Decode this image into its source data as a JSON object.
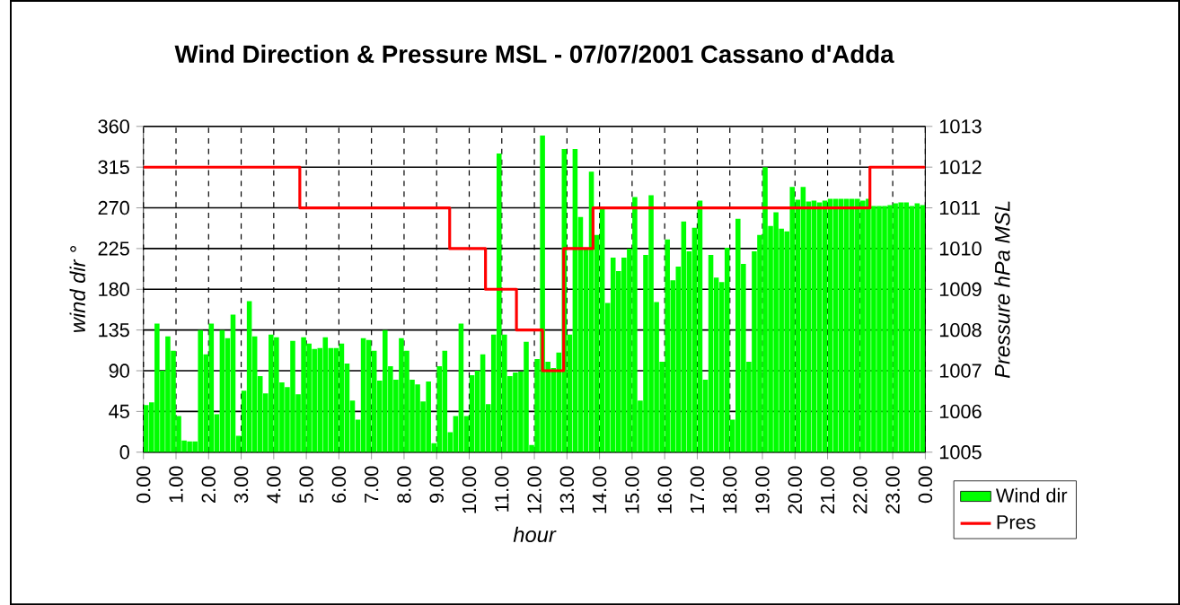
{
  "chart_data": {
    "type": "bar",
    "title": "Wind Direction & Pressure MSL - 07/07/2001 Cassano d'Adda",
    "xlabel": "hour",
    "ylabel": "wind dir °",
    "y2label": "Pressure hPa MSL",
    "series": [
      {
        "name": "Wind dir",
        "color": "#00ff00",
        "x": [
          "2001-07-07T00:05",
          "2001-07-07T00:15",
          "2001-07-07T00:25",
          "2001-07-07T00:35",
          "2001-07-07T00:45",
          "2001-07-07T00:55",
          "2001-07-07T01:05",
          "2001-07-07T01:15",
          "2001-07-07T01:25",
          "2001-07-07T01:35",
          "2001-07-07T01:45",
          "2001-07-07T01:55",
          "2001-07-07T02:05",
          "2001-07-07T02:15",
          "2001-07-07T02:25",
          "2001-07-07T02:35",
          "2001-07-07T02:45",
          "2001-07-07T02:55",
          "2001-07-07T03:05",
          "2001-07-07T03:15",
          "2001-07-07T03:25",
          "2001-07-07T03:35",
          "2001-07-07T03:45",
          "2001-07-07T03:55",
          "2001-07-07T04:05",
          "2001-07-07T04:15",
          "2001-07-07T04:25",
          "2001-07-07T04:35",
          "2001-07-07T04:45",
          "2001-07-07T04:55",
          "2001-07-07T05:05",
          "2001-07-07T05:15",
          "2001-07-07T05:25",
          "2001-07-07T05:35",
          "2001-07-07T05:45",
          "2001-07-07T05:55",
          "2001-07-07T06:05",
          "2001-07-07T06:15",
          "2001-07-07T06:25",
          "2001-07-07T06:35",
          "2001-07-07T06:45",
          "2001-07-07T06:55",
          "2001-07-07T07:05",
          "2001-07-07T07:15",
          "2001-07-07T07:25",
          "2001-07-07T07:35",
          "2001-07-07T07:45",
          "2001-07-07T07:55",
          "2001-07-07T08:05",
          "2001-07-07T08:15",
          "2001-07-07T08:25",
          "2001-07-07T08:35",
          "2001-07-07T08:45",
          "2001-07-07T08:55",
          "2001-07-07T09:05",
          "2001-07-07T09:15",
          "2001-07-07T09:25",
          "2001-07-07T09:35",
          "2001-07-07T09:45",
          "2001-07-07T09:55",
          "2001-07-07T10:05",
          "2001-07-07T10:15",
          "2001-07-07T10:25",
          "2001-07-07T10:35",
          "2001-07-07T10:45",
          "2001-07-07T10:55",
          "2001-07-07T11:05",
          "2001-07-07T11:15",
          "2001-07-07T11:25",
          "2001-07-07T11:35",
          "2001-07-07T11:45",
          "2001-07-07T11:55",
          "2001-07-07T12:05",
          "2001-07-07T12:15",
          "2001-07-07T12:25",
          "2001-07-07T12:35",
          "2001-07-07T12:45",
          "2001-07-07T12:55",
          "2001-07-07T13:05",
          "2001-07-07T13:15",
          "2001-07-07T13:25",
          "2001-07-07T13:35",
          "2001-07-07T13:45",
          "2001-07-07T13:55",
          "2001-07-07T14:05",
          "2001-07-07T14:15",
          "2001-07-07T14:25",
          "2001-07-07T14:35",
          "2001-07-07T14:45",
          "2001-07-07T14:55",
          "2001-07-07T15:05",
          "2001-07-07T15:15",
          "2001-07-07T15:25",
          "2001-07-07T15:35",
          "2001-07-07T15:45",
          "2001-07-07T15:55",
          "2001-07-07T16:05",
          "2001-07-07T16:15",
          "2001-07-07T16:25",
          "2001-07-07T16:35",
          "2001-07-07T16:45",
          "2001-07-07T16:55",
          "2001-07-07T17:05",
          "2001-07-07T17:15",
          "2001-07-07T17:25",
          "2001-07-07T17:35",
          "2001-07-07T17:45",
          "2001-07-07T17:55",
          "2001-07-07T18:05",
          "2001-07-07T18:15",
          "2001-07-07T18:25",
          "2001-07-07T18:35",
          "2001-07-07T18:45",
          "2001-07-07T18:55",
          "2001-07-07T19:05",
          "2001-07-07T19:15",
          "2001-07-07T19:25",
          "2001-07-07T19:35",
          "2001-07-07T19:45",
          "2001-07-07T19:55",
          "2001-07-07T20:05",
          "2001-07-07T20:15",
          "2001-07-07T20:25",
          "2001-07-07T20:35",
          "2001-07-07T20:45",
          "2001-07-07T20:55",
          "2001-07-07T21:05",
          "2001-07-07T21:15",
          "2001-07-07T21:25",
          "2001-07-07T21:35",
          "2001-07-07T21:45",
          "2001-07-07T21:55",
          "2001-07-07T22:05",
          "2001-07-07T22:15",
          "2001-07-07T22:25",
          "2001-07-07T22:35",
          "2001-07-07T22:45",
          "2001-07-07T22:55",
          "2001-07-07T23:05",
          "2001-07-07T23:15",
          "2001-07-07T23:25",
          "2001-07-07T23:35",
          "2001-07-07T23:45",
          "2001-07-07T23:55"
        ],
        "values": [
          52,
          55,
          142,
          90,
          128,
          112,
          40,
          13,
          12,
          12,
          135,
          108,
          142,
          42,
          135,
          126,
          152,
          18,
          68,
          167,
          128,
          84,
          65,
          130,
          127,
          77,
          72,
          123,
          64,
          127,
          120,
          114,
          115,
          127,
          115,
          115,
          120,
          98,
          57,
          36,
          126,
          124,
          112,
          79,
          135,
          95,
          80,
          126,
          112,
          80,
          75,
          56,
          78,
          10,
          95,
          112,
          22,
          40,
          142,
          40,
          85,
          90,
          108,
          53,
          130,
          330,
          130,
          84,
          88,
          89,
          122,
          8,
          103,
          350,
          100,
          93,
          110,
          335,
          130,
          335,
          260,
          225,
          310,
          240,
          270,
          165,
          215,
          200,
          215,
          225,
          282,
          57,
          218,
          284,
          166,
          100,
          235,
          190,
          205,
          255,
          222,
          248,
          278,
          80,
          218,
          193,
          188,
          226,
          36,
          258,
          208,
          100,
          222,
          240,
          315,
          250,
          265,
          247,
          244,
          293,
          279,
          293,
          277,
          278,
          276,
          278,
          280,
          280,
          280,
          280,
          280,
          280,
          278,
          280,
          272,
          272,
          272,
          273,
          275,
          276,
          276,
          272,
          275,
          273
        ]
      },
      {
        "name": "Pres",
        "color": "#ff0000",
        "type": "step",
        "axis": "y2",
        "x": [
          "2001-07-07T00:00",
          "2001-07-07T04:48",
          "2001-07-07T09:24",
          "2001-07-07T10:30",
          "2001-07-07T11:27",
          "2001-07-07T12:15",
          "2001-07-07T12:54",
          "2001-07-07T13:48",
          "2001-07-07T22:18",
          "2001-07-08T00:00"
        ],
        "values": [
          1012,
          1011,
          1010,
          1009,
          1008,
          1007,
          1010,
          1011,
          1012,
          1012
        ]
      }
    ],
    "xlim": [
      "2001-07-07T00:00",
      "2001-07-08T00:00"
    ],
    "xticks": [
      {
        "value": "2001-07-07T00:00",
        "label": "0.00"
      },
      {
        "value": "2001-07-07T01:00",
        "label": "1.00"
      },
      {
        "value": "2001-07-07T02:00",
        "label": "2.00"
      },
      {
        "value": "2001-07-07T03:00",
        "label": "3.00"
      },
      {
        "value": "2001-07-07T04:00",
        "label": "4.00"
      },
      {
        "value": "2001-07-07T05:00",
        "label": "5.00"
      },
      {
        "value": "2001-07-07T06:00",
        "label": "6.00"
      },
      {
        "value": "2001-07-07T07:00",
        "label": "7.00"
      },
      {
        "value": "2001-07-07T08:00",
        "label": "8.00"
      },
      {
        "value": "2001-07-07T09:00",
        "label": "9.00"
      },
      {
        "value": "2001-07-07T10:00",
        "label": "10.00"
      },
      {
        "value": "2001-07-07T11:00",
        "label": "11.00"
      },
      {
        "value": "2001-07-07T12:00",
        "label": "12.00"
      },
      {
        "value": "2001-07-07T13:00",
        "label": "13.00"
      },
      {
        "value": "2001-07-07T14:00",
        "label": "14.00"
      },
      {
        "value": "2001-07-07T15:00",
        "label": "15.00"
      },
      {
        "value": "2001-07-07T16:00",
        "label": "16.00"
      },
      {
        "value": "2001-07-07T17:00",
        "label": "17.00"
      },
      {
        "value": "2001-07-07T18:00",
        "label": "18.00"
      },
      {
        "value": "2001-07-07T19:00",
        "label": "19.00"
      },
      {
        "value": "2001-07-07T20:00",
        "label": "20.00"
      },
      {
        "value": "2001-07-07T21:00",
        "label": "21.00"
      },
      {
        "value": "2001-07-07T22:00",
        "label": "22.00"
      },
      {
        "value": "2001-07-07T23:00",
        "label": "23.00"
      },
      {
        "value": "2001-07-08T00:00",
        "label": "0.00"
      }
    ],
    "ylim": [
      0,
      360
    ],
    "yticks": [
      0,
      45,
      90,
      135,
      180,
      225,
      270,
      315,
      360
    ],
    "y2lim": [
      1005,
      1013
    ],
    "y2ticks": [
      1005,
      1006,
      1007,
      1008,
      1009,
      1010,
      1011,
      1012,
      1013
    ],
    "grid": true,
    "legend": "right"
  }
}
